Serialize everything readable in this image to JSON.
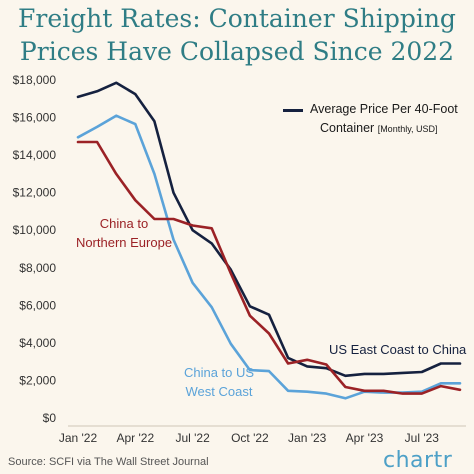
{
  "title_lines": [
    "Freight Rates: Container Shipping",
    "Prices Have Collapsed Since 2022"
  ],
  "legend": {
    "line1": "Average Price Per 40-Foot",
    "line2": "Container",
    "unit": "[Monthly, USD]"
  },
  "source": "Source: SCFI via The Wall Street Journal",
  "logo": {
    "text": "chartr"
  },
  "colors": {
    "background": "#fbf6ed",
    "title": "#2f7d85",
    "east_coast": "#15213f",
    "west_coast": "#5ba3d9",
    "northern_europe": "#9b2226",
    "grid": "#e6dfd3"
  },
  "chart_data": {
    "type": "line",
    "x": [
      "2022-01",
      "2022-02",
      "2022-03",
      "2022-04",
      "2022-05",
      "2022-06",
      "2022-07",
      "2022-08",
      "2022-09",
      "2022-10",
      "2022-11",
      "2022-12",
      "2023-01",
      "2023-02",
      "2023-03",
      "2023-04",
      "2023-05",
      "2023-06",
      "2023-07",
      "2023-08",
      "2023-09"
    ],
    "x_tick_labels": [
      "Jan '22",
      "Apr '22",
      "Jul '22",
      "Oct '22",
      "Jan '23",
      "Apr '23",
      "Jul '23"
    ],
    "ylim": [
      0,
      18000
    ],
    "y_tick_labels": [
      "$0",
      "$2,000",
      "$4,000",
      "$6,000",
      "$8,000",
      "$10,000",
      "$12,000",
      "$14,000",
      "$16,000",
      "$18,000"
    ],
    "grid": false,
    "series": [
      {
        "name": "US East Coast to China",
        "color": "#15213f",
        "values": [
          17100,
          17400,
          17850,
          17250,
          15800,
          12000,
          10000,
          9300,
          7900,
          5950,
          5500,
          3200,
          2750,
          2650,
          2250,
          2350,
          2350,
          2400,
          2450,
          2900,
          2900
        ]
      },
      {
        "name": "China to US West Coast",
        "color": "#5ba3d9",
        "values": [
          14950,
          15500,
          16100,
          15650,
          13000,
          9500,
          7200,
          5900,
          3950,
          2550,
          2500,
          1450,
          1400,
          1300,
          1050,
          1400,
          1350,
          1350,
          1400,
          1850,
          1850
        ]
      },
      {
        "name": "China to Northern Europe",
        "color": "#9b2226",
        "values": [
          14700,
          14700,
          13000,
          11600,
          10600,
          10600,
          10250,
          10100,
          7700,
          5450,
          4500,
          2900,
          3100,
          2850,
          1650,
          1450,
          1450,
          1300,
          1300,
          1700,
          1500
        ]
      }
    ],
    "annotations": [
      {
        "series": 0,
        "lines": [
          "US East Coast to China"
        ]
      },
      {
        "series": 1,
        "lines": [
          "China to US",
          "West Coast"
        ]
      },
      {
        "series": 2,
        "lines": [
          "China to",
          "Northern Europe"
        ]
      }
    ]
  }
}
